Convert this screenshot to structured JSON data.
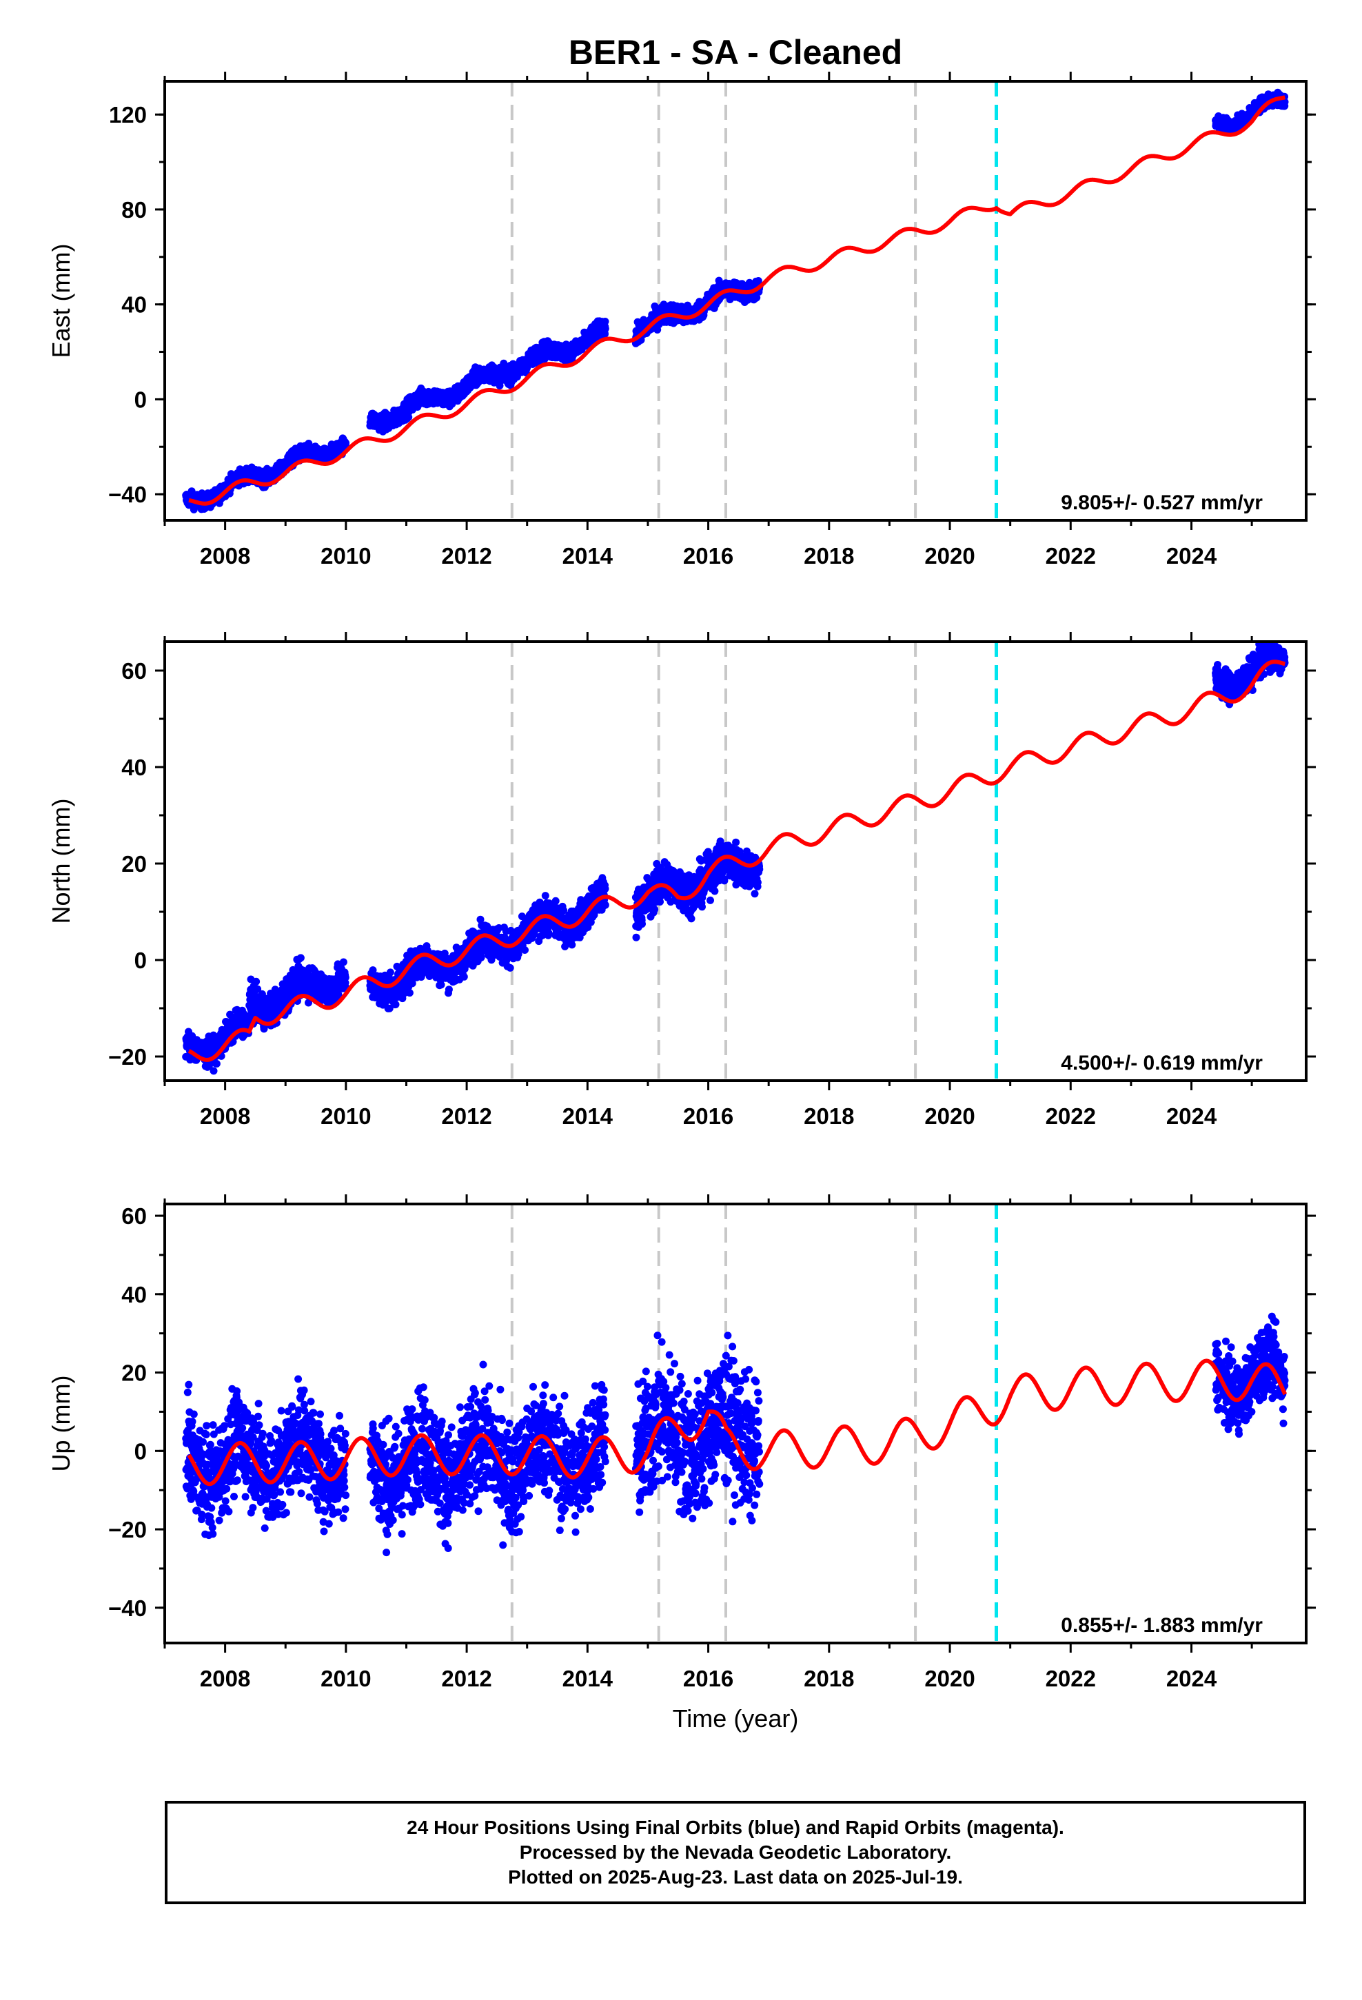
{
  "title": "BER1  - SA - Cleaned",
  "xlabel": "Time (year)",
  "colors": {
    "points": "#0000ff",
    "model": "#ff0000",
    "equipment_change": "#c8c8c8",
    "earthquake": "#00e5ee",
    "frame": "#000000"
  },
  "footer": {
    "line1": "24 Hour Positions Using Final Orbits (blue) and Rapid Orbits (magenta).",
    "line2": "Processed by the Nevada Geodetic Laboratory.",
    "line3": "Plotted on 2025-Aug-23. Last data on 2025-Jul-19."
  },
  "chart_data": [
    {
      "type": "scatter",
      "panel": "east",
      "ylabel": "East (mm)",
      "xlim": [
        2007.0,
        2025.9
      ],
      "ylim": [
        -51,
        134
      ],
      "xticks": [
        2008,
        2010,
        2012,
        2014,
        2016,
        2018,
        2020,
        2022,
        2024
      ],
      "yticks": [
        -40,
        0,
        40,
        80,
        120
      ],
      "velocity_label": "9.805+/- 0.527 mm/yr",
      "gray_dashed_x": [
        2012.75,
        2015.18,
        2016.29,
        2019.43
      ],
      "cyan_dashed_x": [
        2020.77
      ],
      "data_segments": [
        {
          "start": 2007.35,
          "end": 2010.0,
          "rate": 9.8,
          "start_y": -44,
          "noise": 2.2
        },
        {
          "start": 2010.4,
          "end": 2014.3,
          "rate": 9.8,
          "start_y": -10,
          "noise": 2.5
        },
        {
          "start": 2014.8,
          "end": 2016.85,
          "rate": 9.8,
          "start_y": 29,
          "noise": 2.8
        },
        {
          "start": 2024.4,
          "end": 2025.55,
          "rate": 9.8,
          "start_y": 115,
          "noise": 2.0
        }
      ],
      "model": {
        "name": "model",
        "knots_x": [
          2007.4,
          2008.0,
          2009.0,
          2010.0,
          2011.0,
          2012.0,
          2013.0,
          2014.0,
          2015.0,
          2016.0,
          2017.0,
          2018.0,
          2019.0,
          2019.5,
          2020.0,
          2020.77,
          2021.0,
          2022.0,
          2023.0,
          2024.0,
          2025.0,
          2025.55
        ],
        "knots_y": [
          -44,
          -39,
          -31,
          -22,
          -12,
          -2,
          9,
          20,
          30,
          40,
          51,
          59,
          67,
          71,
          75,
          83,
          78,
          87,
          97,
          107,
          117,
          128
        ],
        "seasonal_amp": 2.5
      }
    },
    {
      "type": "scatter",
      "panel": "north",
      "ylabel": "North (mm)",
      "xlim": [
        2007.0,
        2025.9
      ],
      "ylim": [
        -25,
        66
      ],
      "xticks": [
        2008,
        2010,
        2012,
        2014,
        2016,
        2018,
        2020,
        2022,
        2024
      ],
      "yticks": [
        -20,
        0,
        20,
        40,
        60
      ],
      "velocity_label": "4.500+/- 0.619 mm/yr",
      "gray_dashed_x": [
        2012.75,
        2015.18,
        2016.29,
        2019.43
      ],
      "cyan_dashed_x": [
        2020.77
      ],
      "data_segments": [
        {
          "start": 2007.35,
          "end": 2008.4,
          "rate": 4.5,
          "start_y": -19,
          "noise": 2.0
        },
        {
          "start": 2008.4,
          "end": 2010.0,
          "rate": 4.5,
          "start_y": -10,
          "noise": 2.5
        },
        {
          "start": 2010.4,
          "end": 2014.3,
          "rate": 4.5,
          "start_y": -6,
          "noise": 2.5
        },
        {
          "start": 2014.8,
          "end": 2016.85,
          "rate": 4.5,
          "start_y": 12,
          "noise": 3.0
        },
        {
          "start": 2024.4,
          "end": 2025.55,
          "rate": 4.5,
          "start_y": 57,
          "noise": 2.2
        }
      ],
      "model": {
        "name": "model",
        "knots_x": [
          2007.4,
          2008.4,
          2008.5,
          2010.0,
          2011.0,
          2012.0,
          2013.0,
          2014.0,
          2015.0,
          2015.5,
          2016.0,
          2017.0,
          2018.0,
          2019.0,
          2020.0,
          2021.0,
          2022.0,
          2023.0,
          2024.0,
          2025.0,
          2025.55
        ],
        "knots_y": [
          -20,
          -16,
          -12,
          -7,
          -2,
          2,
          6,
          10,
          14,
          13,
          18,
          23,
          27,
          31,
          35,
          40,
          44,
          48,
          52,
          57,
          62
        ],
        "seasonal_amp": 2.0
      }
    },
    {
      "type": "scatter",
      "panel": "up",
      "ylabel": "Up (mm)",
      "xlim": [
        2007.0,
        2025.9
      ],
      "ylim": [
        -49,
        63
      ],
      "xticks": [
        2008,
        2010,
        2012,
        2014,
        2016,
        2018,
        2020,
        2022,
        2024
      ],
      "yticks": [
        -40,
        -20,
        0,
        20,
        40,
        60
      ],
      "velocity_label": "0.855+/- 1.883 mm/yr",
      "gray_dashed_x": [
        2012.75,
        2015.18,
        2016.29,
        2019.43
      ],
      "cyan_dashed_x": [
        2020.77
      ],
      "data_segments": [
        {
          "start": 2007.35,
          "end": 2010.0,
          "rate": 0.8,
          "start_y": -3,
          "noise": 9.0
        },
        {
          "start": 2010.4,
          "end": 2014.3,
          "rate": 0.8,
          "start_y": -4,
          "noise": 10.0
        },
        {
          "start": 2014.8,
          "end": 2016.85,
          "rate": 0.8,
          "start_y": 3,
          "noise": 12.0
        },
        {
          "start": 2024.4,
          "end": 2025.55,
          "rate": 0.8,
          "start_y": 18,
          "noise": 6.0
        }
      ],
      "model": {
        "name": "model",
        "knots_x": [
          2007.4,
          2008.0,
          2009.0,
          2010.0,
          2011.0,
          2012.0,
          2013.0,
          2014.0,
          2015.0,
          2015.5,
          2016.0,
          2016.3,
          2017.0,
          2018.0,
          2019.0,
          2019.43,
          2020.0,
          2020.77,
          2021.0,
          2022.0,
          2023.0,
          2024.0,
          2025.0,
          2025.55
        ],
        "knots_y": [
          -4,
          -3,
          -3,
          -2,
          -1,
          -1,
          -1,
          -2,
          0,
          6,
          10,
          1,
          0,
          1,
          2,
          4,
          7,
          12,
          14,
          16,
          17,
          18,
          18,
          16
        ],
        "seasonal_amp": 5.0
      }
    }
  ]
}
